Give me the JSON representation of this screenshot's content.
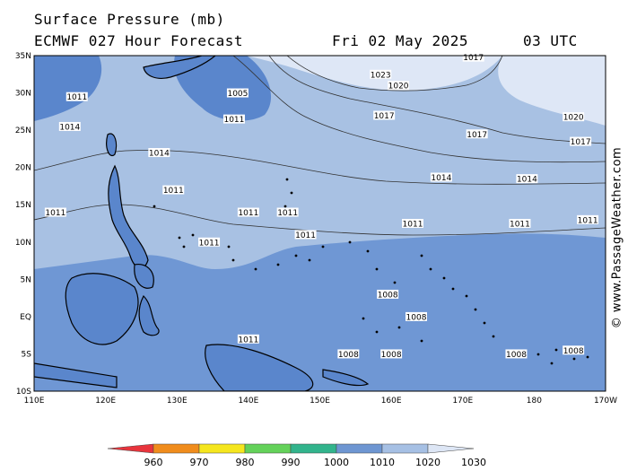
{
  "header": {
    "title": "Surface Pressure (mb)",
    "model_line": "ECMWF 027 Hour Forecast",
    "date": "Fri 02 May 2025",
    "time": "03 UTC"
  },
  "credit": "© www.PassageWeather.com",
  "axes": {
    "lat_labels": [
      "35N",
      "30N",
      "25N",
      "20N",
      "15N",
      "10N",
      "5N",
      "EQ",
      "5S",
      "10S"
    ],
    "lon_labels": [
      "110E",
      "120E",
      "130E",
      "140E",
      "150E",
      "160E",
      "170E",
      "180",
      "170W"
    ]
  },
  "colorbar": {
    "labels": [
      "960",
      "970",
      "980",
      "990",
      "1000",
      "1010",
      "1020",
      "1030"
    ],
    "colors": [
      "#e8343c",
      "#f08c1c",
      "#f5e61e",
      "#64d25a",
      "#32b48c",
      "#6e96d2",
      "#a6c0e4",
      "#dde6f5"
    ]
  },
  "isobars": {
    "map_colors": {
      "land": "#5a86cc",
      "low_1008": "#6f97d4",
      "band_1010_1020": "#a8c1e3",
      "high_1020": "#dee7f6"
    },
    "labels": [
      {
        "text": "1023",
        "lon": 158.5,
        "lat": 32.5
      },
      {
        "text": "1020",
        "lon": 161.0,
        "lat": 31.0
      },
      {
        "text": "1017",
        "lon": 159.0,
        "lat": 27.0
      },
      {
        "text": "1017",
        "lon": 172.0,
        "lat": 24.5
      },
      {
        "text": "1017",
        "lon": 186.5,
        "lat": 23.5
      },
      {
        "text": "1017",
        "lon": 171.5,
        "lat": 34.8
      },
      {
        "text": "1020",
        "lon": 185.5,
        "lat": 26.8
      },
      {
        "text": "1014",
        "lon": 167.0,
        "lat": 18.7
      },
      {
        "text": "1014",
        "lon": 179.0,
        "lat": 18.5
      },
      {
        "text": "1014",
        "lon": 115.0,
        "lat": 25.5
      },
      {
        "text": "1014",
        "lon": 127.5,
        "lat": 22.0
      },
      {
        "text": "1011",
        "lon": 113.0,
        "lat": 14.0
      },
      {
        "text": "1011",
        "lon": 129.5,
        "lat": 17.0
      },
      {
        "text": "1011",
        "lon": 140.0,
        "lat": 14.0
      },
      {
        "text": "1011",
        "lon": 145.5,
        "lat": 14.0
      },
      {
        "text": "1011",
        "lon": 163.0,
        "lat": 12.5
      },
      {
        "text": "1011",
        "lon": 178.0,
        "lat": 12.5
      },
      {
        "text": "1011",
        "lon": 187.5,
        "lat": 13.0
      },
      {
        "text": "1011",
        "lon": 148.0,
        "lat": 11.0
      },
      {
        "text": "1011",
        "lon": 134.5,
        "lat": 10.0
      },
      {
        "text": "1011",
        "lon": 116.0,
        "lat": 29.5
      },
      {
        "text": "1005",
        "lon": 138.5,
        "lat": 30.0
      },
      {
        "text": "1011",
        "lon": 138.0,
        "lat": 26.5
      },
      {
        "text": "1008",
        "lon": 159.5,
        "lat": 3.0
      },
      {
        "text": "1008",
        "lon": 163.5,
        "lat": 0.0
      },
      {
        "text": "1008",
        "lon": 160.0,
        "lat": -5.0
      },
      {
        "text": "1008",
        "lon": 177.5,
        "lat": -5.0
      },
      {
        "text": "1008",
        "lon": 185.5,
        "lat": -4.5
      },
      {
        "text": "1008",
        "lon": 154.0,
        "lat": -5.0
      },
      {
        "text": "1011",
        "lon": 140.0,
        "lat": -3.0
      }
    ]
  }
}
